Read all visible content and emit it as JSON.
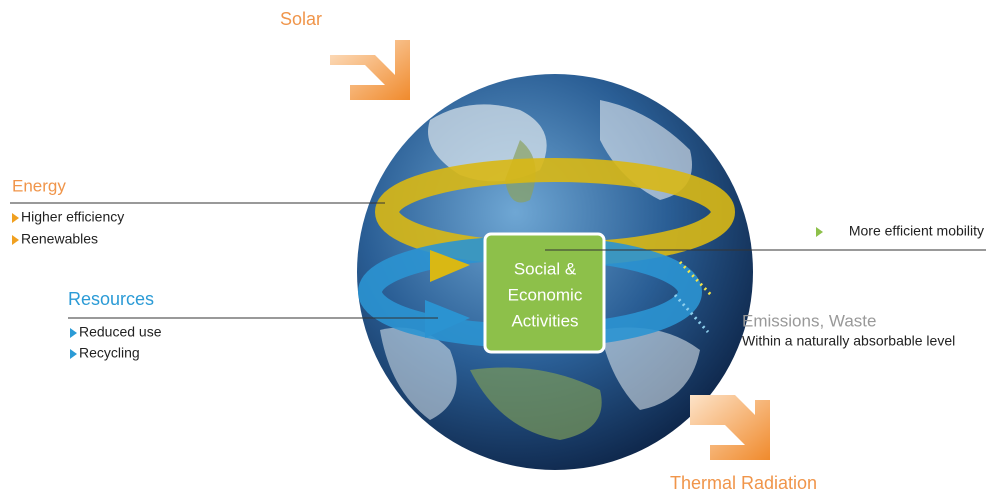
{
  "solar": "Solar",
  "thermal_radiation": "Thermal Radiation",
  "energy": {
    "title": "Energy",
    "items": [
      "Higher efficiency",
      "Renewables"
    ]
  },
  "resources": {
    "title": "Resources",
    "items": [
      "Reduced use",
      "Recycling"
    ]
  },
  "center": {
    "lines": [
      "Social &",
      "Economic",
      "Activities"
    ]
  },
  "mobility": "More efficient mobility",
  "emissions": {
    "title": "Emissions, Waste",
    "subtitle": "Within a naturally absorbable level"
  }
}
